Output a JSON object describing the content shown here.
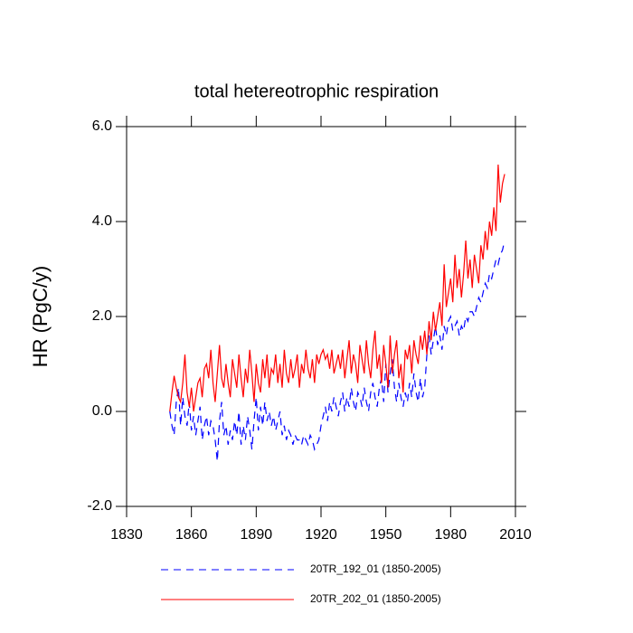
{
  "chart_data": {
    "type": "line",
    "title": "total hetereotrophic respiration",
    "ylabel": "HR  (PgC/y)",
    "x": [
      1850,
      1851,
      1852,
      1853,
      1854,
      1855,
      1856,
      1857,
      1858,
      1859,
      1860,
      1861,
      1862,
      1863,
      1864,
      1865,
      1866,
      1867,
      1868,
      1869,
      1870,
      1871,
      1872,
      1873,
      1874,
      1875,
      1876,
      1877,
      1878,
      1879,
      1880,
      1881,
      1882,
      1883,
      1884,
      1885,
      1886,
      1887,
      1888,
      1889,
      1890,
      1891,
      1892,
      1893,
      1894,
      1895,
      1896,
      1897,
      1898,
      1899,
      1900,
      1901,
      1902,
      1903,
      1904,
      1905,
      1906,
      1907,
      1908,
      1909,
      1910,
      1911,
      1912,
      1913,
      1914,
      1915,
      1916,
      1917,
      1918,
      1919,
      1920,
      1921,
      1922,
      1923,
      1924,
      1925,
      1926,
      1927,
      1928,
      1929,
      1930,
      1931,
      1932,
      1933,
      1934,
      1935,
      1936,
      1937,
      1938,
      1939,
      1940,
      1941,
      1942,
      1943,
      1944,
      1945,
      1946,
      1947,
      1948,
      1949,
      1950,
      1951,
      1952,
      1953,
      1954,
      1955,
      1956,
      1957,
      1958,
      1959,
      1960,
      1961,
      1962,
      1963,
      1964,
      1965,
      1966,
      1967,
      1968,
      1969,
      1970,
      1971,
      1972,
      1973,
      1974,
      1975,
      1976,
      1977,
      1978,
      1979,
      1980,
      1981,
      1982,
      1983,
      1984,
      1985,
      1986,
      1987,
      1988,
      1989,
      1990,
      1991,
      1992,
      1993,
      1994,
      1995,
      1996,
      1997,
      1998,
      1999,
      2000,
      2001,
      2002,
      2003,
      2004,
      2005
    ],
    "series": [
      {
        "name": "20TR_192_01 (1850-2005)",
        "color": "#0000ff",
        "dash": true,
        "values": [
          0.0,
          -0.3,
          -0.5,
          0.2,
          0.5,
          -0.3,
          0.3,
          -0.1,
          -0.3,
          0.2,
          -0.4,
          -0.1,
          -0.5,
          -0.2,
          0.1,
          -0.6,
          -0.3,
          -0.1,
          -0.5,
          -0.2,
          -0.3,
          -0.6,
          -1.05,
          -0.2,
          0.2,
          -0.5,
          -0.3,
          -0.7,
          -0.4,
          -0.6,
          -0.2,
          -0.5,
          0.0,
          -0.7,
          -0.3,
          -0.6,
          -0.1,
          -0.4,
          -0.8,
          -0.2,
          0.3,
          -0.4,
          0.1,
          -0.3,
          0.2,
          -0.2,
          0.0,
          -0.3,
          -0.1,
          -0.4,
          -0.2,
          0.0,
          -0.5,
          -0.3,
          -0.6,
          -0.4,
          -0.5,
          -0.7,
          -0.5,
          -0.6,
          -0.6,
          -0.7,
          -0.5,
          -0.6,
          -0.7,
          -0.5,
          -0.6,
          -0.8,
          -0.7,
          -0.6,
          -0.3,
          -0.1,
          0.1,
          -0.2,
          0.2,
          0.0,
          0.3,
          0.1,
          -0.1,
          0.2,
          0.4,
          0.0,
          0.3,
          0.1,
          0.5,
          0.2,
          0.0,
          0.4,
          0.3,
          0.1,
          0.5,
          0.2,
          0.0,
          0.4,
          0.6,
          0.3,
          0.1,
          0.5,
          0.7,
          0.2,
          1.0,
          0.4,
          0.8,
          1.1,
          0.5,
          0.2,
          0.6,
          0.3,
          0.1,
          0.4,
          0.2,
          0.6,
          0.3,
          0.8,
          0.4,
          0.2,
          0.7,
          0.3,
          0.5,
          1.2,
          1.6,
          1.2,
          1.5,
          1.8,
          1.4,
          1.6,
          1.3,
          1.8,
          1.6,
          1.9,
          2.0,
          1.7,
          1.8,
          1.9,
          1.6,
          1.8,
          1.7,
          2.0,
          1.9,
          2.1,
          2.1,
          2.0,
          2.2,
          2.4,
          2.3,
          2.5,
          2.7,
          2.6,
          2.9,
          2.8,
          3.0,
          3.2,
          3.1,
          3.3,
          3.4,
          3.6
        ]
      },
      {
        "name": "20TR_202_01 (1850-2005)",
        "color": "#ff0000",
        "dash": false,
        "values": [
          0.0,
          0.4,
          0.75,
          0.5,
          0.3,
          0.2,
          0.6,
          1.2,
          0.4,
          0.1,
          0.5,
          0.0,
          0.3,
          0.6,
          0.7,
          0.3,
          0.9,
          1.0,
          0.7,
          1.3,
          0.6,
          0.2,
          0.8,
          1.4,
          0.7,
          0.5,
          1.0,
          0.6,
          0.3,
          1.1,
          0.8,
          0.5,
          1.2,
          0.7,
          0.3,
          0.9,
          0.6,
          1.3,
          0.8,
          0.2,
          1.0,
          0.6,
          0.4,
          1.1,
          0.7,
          1.2,
          0.5,
          0.9,
          0.8,
          1.2,
          0.6,
          1.0,
          0.5,
          1.3,
          0.8,
          0.6,
          1.1,
          0.7,
          0.9,
          1.2,
          0.5,
          1.0,
          0.8,
          1.3,
          0.9,
          0.7,
          1.1,
          0.6,
          1.2,
          1.0,
          1.2,
          1.3,
          1.1,
          1.2,
          0.9,
          1.3,
          0.8,
          1.0,
          1.2,
          0.9,
          1.3,
          0.7,
          1.1,
          1.5,
          0.8,
          1.2,
          1.0,
          0.6,
          1.4,
          1.1,
          0.8,
          1.5,
          1.0,
          0.7,
          1.3,
          1.7,
          0.9,
          1.2,
          0.6,
          1.4,
          1.0,
          0.5,
          1.6,
          0.8,
          1.2,
          1.5,
          0.7,
          1.0,
          0.4,
          1.3,
          1.1,
          1.4,
          0.8,
          1.5,
          1.2,
          1.0,
          1.6,
          1.3,
          1.7,
          1.2,
          1.9,
          1.5,
          2.1,
          1.7,
          2.0,
          2.3,
          1.8,
          3.1,
          2.2,
          2.5,
          2.8,
          2.3,
          3.3,
          2.6,
          3.0,
          2.4,
          2.9,
          3.6,
          2.8,
          3.2,
          2.6,
          3.3,
          3.0,
          2.7,
          3.5,
          3.2,
          3.8,
          3.4,
          4.0,
          3.7,
          4.3,
          3.8,
          5.2,
          4.4,
          4.8,
          5.0
        ]
      }
    ],
    "xlim": [
      1830,
      2010
    ],
    "xticks": [
      1830,
      1860,
      1890,
      1920,
      1950,
      1980,
      2010
    ],
    "ylim": [
      -2,
      6
    ],
    "yticks": [
      {
        "value": -2,
        "label": "-2.0"
      },
      {
        "value": 0,
        "label": "0.0"
      },
      {
        "value": 2,
        "label": "2.0"
      },
      {
        "value": 4,
        "label": "4.0"
      },
      {
        "value": 6,
        "label": "6.0"
      }
    ]
  }
}
